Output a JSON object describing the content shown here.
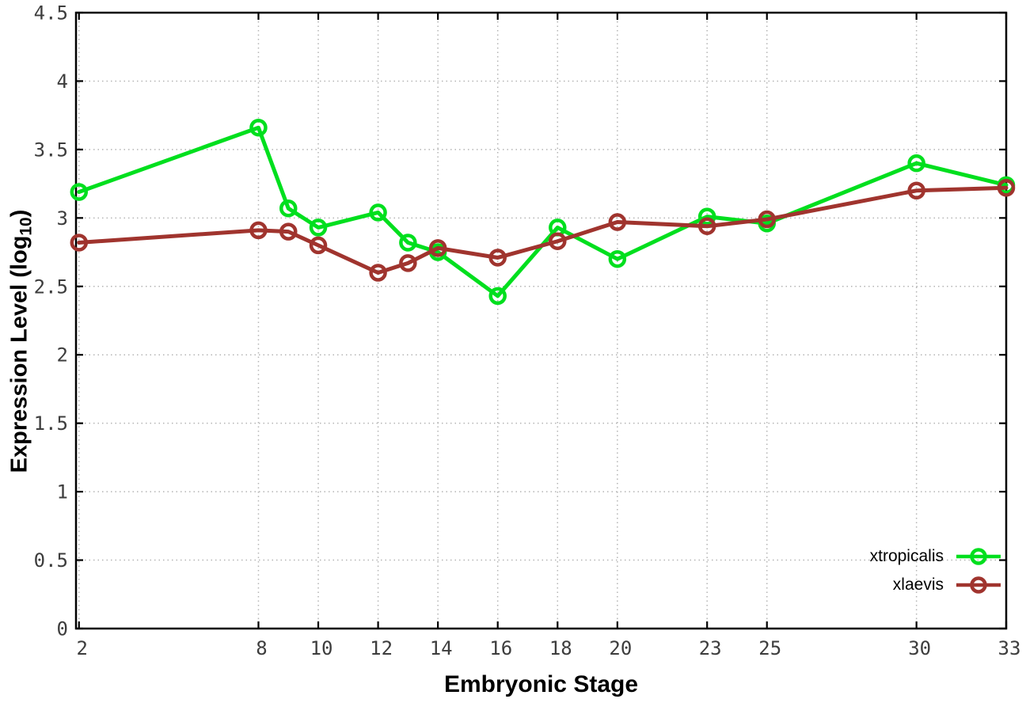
{
  "chart_data": {
    "type": "line",
    "title": "",
    "xlabel": "Embryonic Stage",
    "ylabel": {
      "prefix": "Expression Level (log",
      "subscript": "10",
      "suffix": ")"
    },
    "x": [
      2,
      8,
      9,
      10,
      12,
      13,
      14,
      16,
      18,
      20,
      23,
      25,
      30,
      33
    ],
    "series": [
      {
        "name": "xtropicalis",
        "color": "#00df1e",
        "values": [
          3.19,
          3.66,
          3.07,
          2.93,
          3.04,
          2.82,
          2.75,
          2.43,
          2.93,
          2.7,
          3.01,
          2.96,
          3.4,
          3.24
        ]
      },
      {
        "name": "xlaevis",
        "color": "#a0342e",
        "values": [
          2.82,
          2.91,
          2.9,
          2.8,
          2.6,
          2.67,
          2.78,
          2.71,
          2.83,
          2.97,
          2.94,
          2.99,
          3.2,
          3.22
        ]
      }
    ],
    "x_ticks": {
      "values": [
        2,
        8,
        10,
        12,
        14,
        16,
        18,
        20,
        23,
        25,
        30,
        33
      ],
      "labels": [
        "2",
        "8",
        "10",
        "12",
        "14",
        "16",
        "18",
        "20",
        "23",
        "25",
        "30",
        "33"
      ]
    },
    "y_ticks": {
      "values": [
        0,
        0.5,
        1,
        1.5,
        2,
        2.5,
        3,
        3.5,
        4,
        4.5
      ],
      "labels": [
        "0",
        "0.5",
        "1",
        "1.5",
        "2",
        "2.5",
        "3",
        "3.5",
        "4",
        "4.5"
      ]
    },
    "xlim": [
      1.9,
      33
    ],
    "ylim": [
      0,
      4.5
    ],
    "grid": true,
    "legend_position": "bottom-right",
    "colors": {
      "background": "#ffffff",
      "axis": "#000000",
      "grid": "#b4b4b4",
      "tick_text": "#3d3d3d"
    }
  }
}
